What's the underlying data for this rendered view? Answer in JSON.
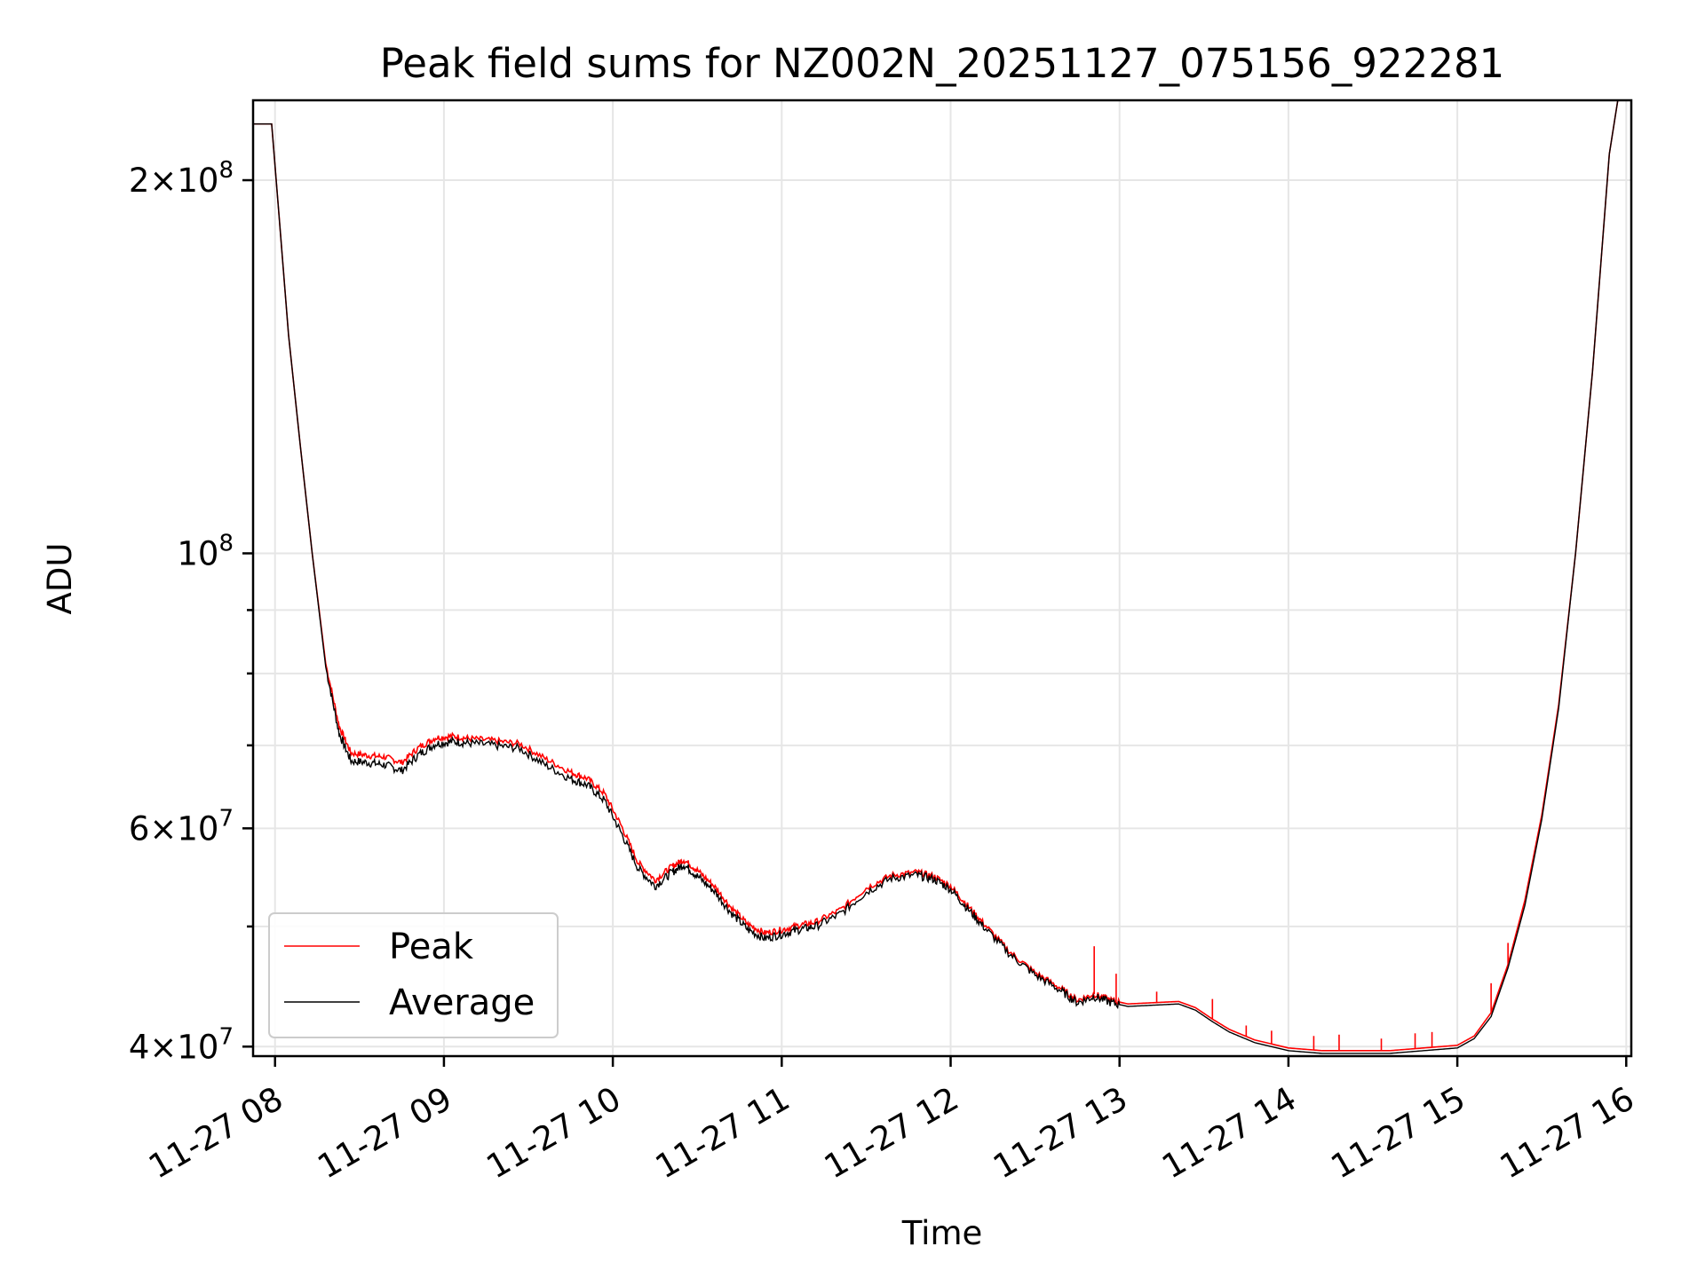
{
  "chart_data": {
    "type": "line",
    "title": "Peak field sums for NZ002N_20251127_075156_922281",
    "xlabel": "Time",
    "ylabel": "ADU",
    "yscale": "log",
    "xlim": [
      7.87,
      16.03
    ],
    "ylim": [
      39300000,
      232000000
    ],
    "x_ticks": [
      {
        "value": 8,
        "label": "11-27 08"
      },
      {
        "value": 9,
        "label": "11-27 09"
      },
      {
        "value": 10,
        "label": "11-27 10"
      },
      {
        "value": 11,
        "label": "11-27 11"
      },
      {
        "value": 12,
        "label": "11-27 12"
      },
      {
        "value": 13,
        "label": "11-27 13"
      },
      {
        "value": 14,
        "label": "11-27 14"
      },
      {
        "value": 15,
        "label": "11-27 15"
      },
      {
        "value": 16,
        "label": "11-27 16"
      }
    ],
    "y_ticks": [
      {
        "value": 40000000,
        "mantissa": "4",
        "exp": "7"
      },
      {
        "value": 60000000,
        "mantissa": "6",
        "exp": "7"
      },
      {
        "value": 100000000,
        "mantissa": "",
        "exp": "8"
      },
      {
        "value": 200000000,
        "mantissa": "2",
        "exp": "8"
      }
    ],
    "y_minor_ticks": [
      50000000,
      70000000,
      80000000,
      90000000
    ],
    "grid": true,
    "legend": {
      "position": "lower-left",
      "entries": [
        "Peak",
        "Average"
      ]
    },
    "series": [
      {
        "name": "Average",
        "color": "#000000",
        "x": [
          7.87,
          7.98,
          8.02,
          8.08,
          8.15,
          8.22,
          8.3,
          8.38,
          8.45,
          8.55,
          8.65,
          8.75,
          8.85,
          8.95,
          9.05,
          9.15,
          9.3,
          9.45,
          9.6,
          9.75,
          9.85,
          9.95,
          10.05,
          10.15,
          10.25,
          10.35,
          10.42,
          10.5,
          10.6,
          10.7,
          10.8,
          10.9,
          11.0,
          11.1,
          11.2,
          11.35,
          11.5,
          11.65,
          11.8,
          11.9,
          12.0,
          12.1,
          12.2,
          12.35,
          12.5,
          12.65,
          12.75,
          12.85,
          12.95,
          13.05,
          13.2,
          13.35,
          13.45,
          13.55,
          13.65,
          13.8,
          14.0,
          14.2,
          14.4,
          14.6,
          14.8,
          15.0,
          15.1,
          15.2,
          15.3,
          15.4,
          15.5,
          15.6,
          15.7,
          15.8,
          15.9,
          15.95,
          16.03
        ],
        "y": [
          222000000,
          222000000,
          190000000,
          150000000,
          122000000,
          100000000,
          81000000,
          71500000,
          68000000,
          67800000,
          67500000,
          66800000,
          68800000,
          70200000,
          70500000,
          70300000,
          70000000,
          69600000,
          67500000,
          65800000,
          65000000,
          63200000,
          59500000,
          55700000,
          53900000,
          55300000,
          56100000,
          54900000,
          53400000,
          51300000,
          49700000,
          48900000,
          49300000,
          49700000,
          50000000,
          51200000,
          53300000,
          54700000,
          55000000,
          54600000,
          53600000,
          51700000,
          49900000,
          47500000,
          45700000,
          44400000,
          43400000,
          43900000,
          43400000,
          43100000,
          43200000,
          43300000,
          42800000,
          41900000,
          41100000,
          40300000,
          39700000,
          39500000,
          39500000,
          39500000,
          39700000,
          39900000,
          40600000,
          42300000,
          46300000,
          52000000,
          61000000,
          75000000,
          100000000,
          140000000,
          210000000,
          232000000,
          232000000
        ]
      },
      {
        "name": "Peak",
        "color": "#ff0000",
        "x": [
          7.87,
          7.98,
          8.02,
          8.08,
          8.15,
          8.22,
          8.3,
          8.38,
          8.45,
          8.55,
          8.65,
          8.75,
          8.85,
          8.95,
          9.05,
          9.15,
          9.3,
          9.45,
          9.6,
          9.75,
          9.85,
          9.95,
          10.05,
          10.15,
          10.25,
          10.35,
          10.42,
          10.5,
          10.6,
          10.7,
          10.8,
          10.9,
          11.0,
          11.1,
          11.2,
          11.35,
          11.5,
          11.65,
          11.8,
          11.9,
          12.0,
          12.1,
          12.2,
          12.35,
          12.5,
          12.65,
          12.75,
          12.85,
          12.95,
          13.05,
          13.2,
          13.35,
          13.45,
          13.55,
          13.65,
          13.8,
          14.0,
          14.2,
          14.4,
          14.6,
          14.8,
          15.0,
          15.1,
          15.2,
          15.3,
          15.4,
          15.5,
          15.6,
          15.7,
          15.8,
          15.9,
          15.95,
          16.03
        ],
        "y": [
          222000000,
          222000000,
          190000000,
          150000000,
          122000000,
          100000000,
          81500000,
          72500000,
          69000000,
          68700000,
          68500000,
          67800000,
          69700000,
          71000000,
          71200000,
          70900000,
          70600000,
          70200000,
          68300000,
          66600000,
          65800000,
          64000000,
          60300000,
          56300000,
          54500000,
          55900000,
          56600000,
          55500000,
          53900000,
          51800000,
          50200000,
          49400000,
          49700000,
          50100000,
          50400000,
          51600000,
          53700000,
          55000000,
          55300000,
          54900000,
          53900000,
          52000000,
          50200000,
          47700000,
          45900000,
          44600000,
          43600000,
          44100000,
          43600000,
          43300000,
          43400000,
          43500000,
          43000000,
          42100000,
          41300000,
          40500000,
          39900000,
          39700000,
          39700000,
          39700000,
          39900000,
          40100000,
          40800000,
          42600000,
          46600000,
          52500000,
          61500000,
          75500000,
          100000000,
          140000000,
          210000000,
          232000000,
          232000000
        ],
        "spikes": [
          {
            "x": 12.85,
            "y": 48200000
          },
          {
            "x": 12.98,
            "y": 45800000
          },
          {
            "x": 13.22,
            "y": 44300000
          },
          {
            "x": 13.55,
            "y": 43700000
          },
          {
            "x": 13.75,
            "y": 41600000
          },
          {
            "x": 13.9,
            "y": 41200000
          },
          {
            "x": 14.15,
            "y": 40800000
          },
          {
            "x": 14.3,
            "y": 40900000
          },
          {
            "x": 14.55,
            "y": 40600000
          },
          {
            "x": 14.75,
            "y": 41000000
          },
          {
            "x": 14.85,
            "y": 41100000
          },
          {
            "x": 15.2,
            "y": 45000000
          },
          {
            "x": 15.3,
            "y": 48500000
          }
        ]
      }
    ]
  }
}
